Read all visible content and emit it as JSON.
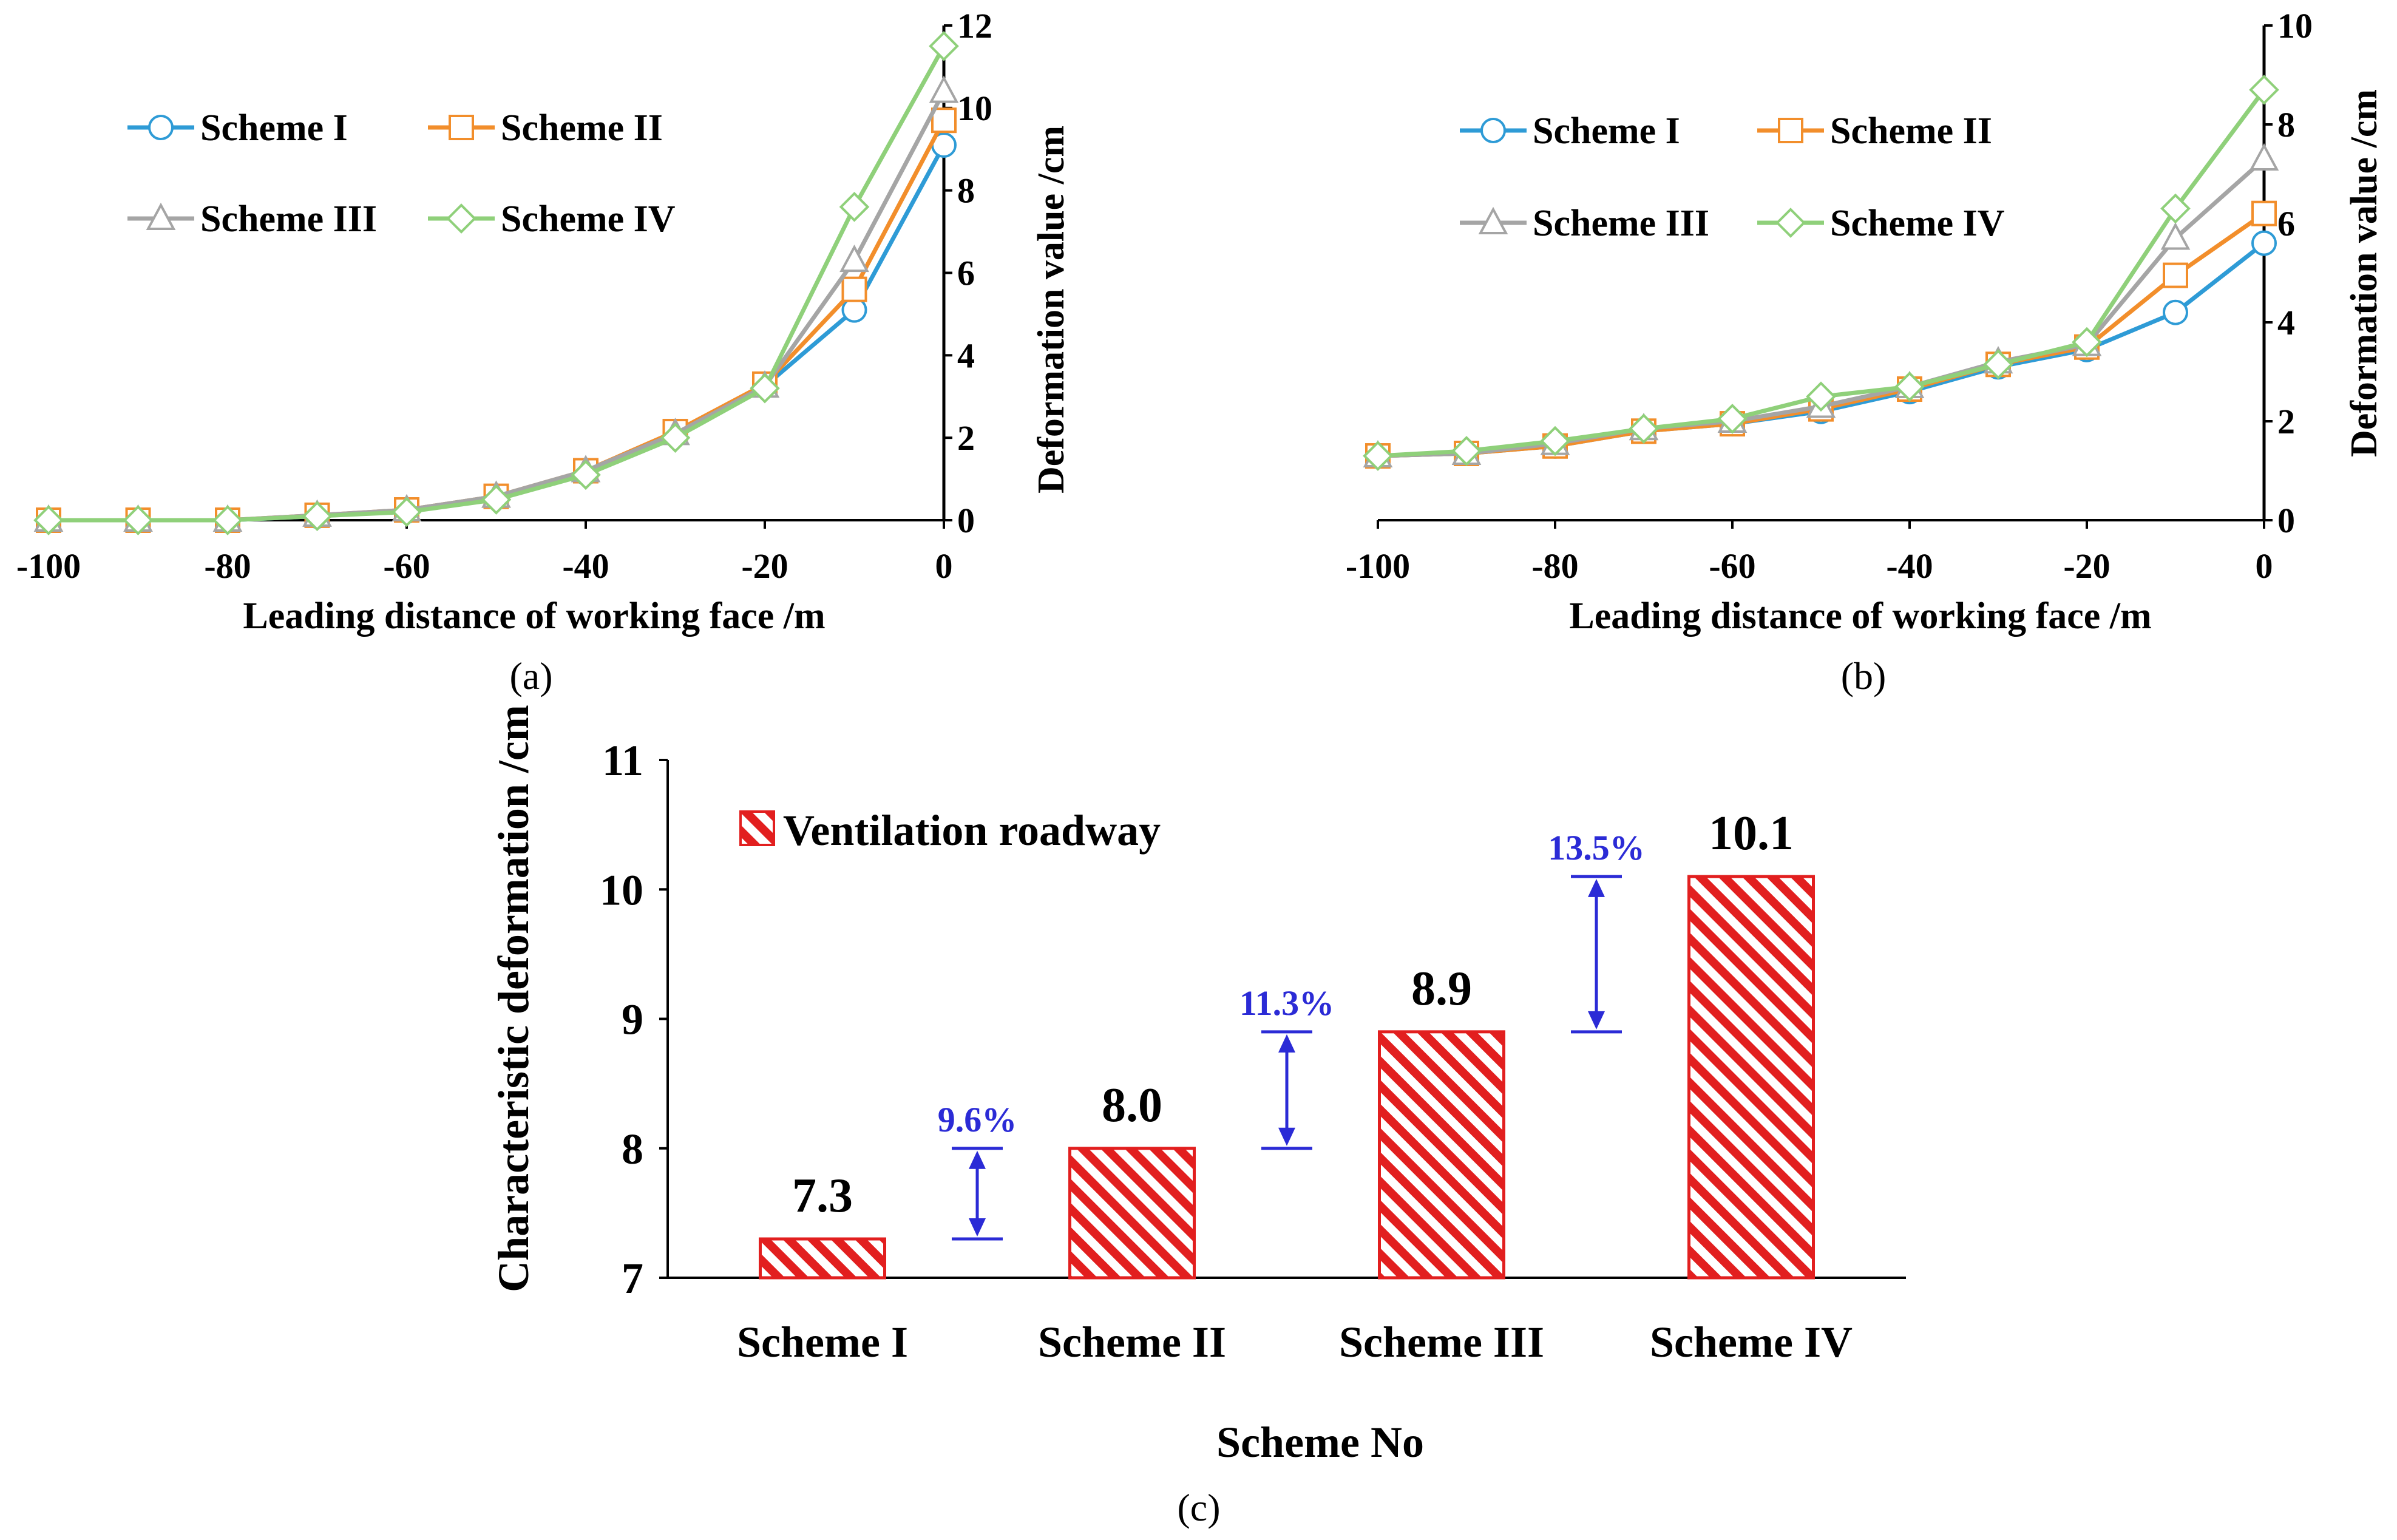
{
  "colors": {
    "scheme1": "#2e9bd6",
    "scheme2": "#f28e2b",
    "scheme3": "#a5a5a5",
    "scheme4": "#8fd07a",
    "bar": "#e21f1f",
    "arrow": "#2b2bd6"
  },
  "chart_data": [
    {
      "type": "line",
      "panel_label": "(a)",
      "xlabel": "Leading distance of working face /m",
      "ylabel": "Deformation value /cm",
      "xlim": [
        -100,
        0
      ],
      "ylim": [
        0,
        12
      ],
      "x_ticks": [
        "-100",
        "-80",
        "-60",
        "-40",
        "-20",
        "0"
      ],
      "y_ticks": [
        "0",
        "2",
        "4",
        "6",
        "8",
        "10",
        "12"
      ],
      "x": [
        -100,
        -90,
        -80,
        -70,
        -60,
        -50,
        -40,
        -30,
        -20,
        -10,
        0
      ],
      "legend_position": "top-left",
      "series": [
        {
          "name": "Scheme I",
          "marker": "circle",
          "values": [
            0,
            0,
            0,
            0.1,
            0.22,
            0.55,
            1.15,
            2.1,
            3.25,
            5.1,
            9.1
          ]
        },
        {
          "name": "Scheme II",
          "marker": "square",
          "values": [
            0,
            0,
            0,
            0.12,
            0.25,
            0.58,
            1.2,
            2.15,
            3.3,
            5.6,
            9.7
          ]
        },
        {
          "name": "Scheme III",
          "marker": "triangle",
          "values": [
            0,
            0,
            0,
            0.12,
            0.25,
            0.58,
            1.2,
            2.1,
            3.25,
            6.3,
            10.4
          ]
        },
        {
          "name": "Scheme IV",
          "marker": "diamond",
          "values": [
            0,
            0,
            0,
            0.1,
            0.2,
            0.5,
            1.1,
            2.0,
            3.2,
            7.6,
            11.5
          ]
        }
      ]
    },
    {
      "type": "line",
      "panel_label": "(b)",
      "xlabel": "Leading distance of working face /m",
      "ylabel": "Deformation value /cm",
      "xlim": [
        -100,
        0
      ],
      "ylim": [
        0,
        10
      ],
      "x_ticks": [
        "-100",
        "-80",
        "-60",
        "-40",
        "-20",
        "0"
      ],
      "y_ticks": [
        "0",
        "2",
        "4",
        "6",
        "8",
        "10"
      ],
      "x": [
        -100,
        -90,
        -80,
        -70,
        -60,
        -50,
        -40,
        -30,
        -20,
        -10,
        0
      ],
      "legend_position": "top-left",
      "series": [
        {
          "name": "Scheme I",
          "marker": "circle",
          "values": [
            1.3,
            1.35,
            1.5,
            1.8,
            1.95,
            2.2,
            2.6,
            3.1,
            3.45,
            4.2,
            5.6
          ]
        },
        {
          "name": "Scheme II",
          "marker": "square",
          "values": [
            1.3,
            1.35,
            1.5,
            1.8,
            1.95,
            2.25,
            2.65,
            3.15,
            3.5,
            4.95,
            6.2
          ]
        },
        {
          "name": "Scheme III",
          "marker": "triangle",
          "values": [
            1.3,
            1.35,
            1.55,
            1.85,
            2.0,
            2.3,
            2.7,
            3.2,
            3.55,
            5.7,
            7.3
          ]
        },
        {
          "name": "Scheme IV",
          "marker": "diamond",
          "values": [
            1.3,
            1.4,
            1.6,
            1.85,
            2.05,
            2.5,
            2.7,
            3.15,
            3.6,
            6.3,
            8.7
          ]
        }
      ]
    },
    {
      "type": "bar",
      "panel_label": "(c)",
      "xlabel": "Scheme No",
      "ylabel": "Characteristic deformation /cm",
      "ylim": [
        7,
        11
      ],
      "y_ticks": [
        "7",
        "8",
        "9",
        "10",
        "11"
      ],
      "legend": "Ventilation roadway",
      "legend_position": "top-left",
      "categories": [
        "Scheme I",
        "Scheme II",
        "Scheme III",
        "Scheme IV"
      ],
      "values": [
        7.3,
        8.0,
        8.9,
        10.1
      ],
      "value_labels": [
        "7.3",
        "8.0",
        "8.9",
        "10.1"
      ],
      "increases": [
        {
          "label": "9.6%",
          "from": 7.3,
          "to": 8.0
        },
        {
          "label": "11.3%",
          "from": 8.0,
          "to": 8.9
        },
        {
          "label": "13.5%",
          "from": 8.9,
          "to": 10.1
        }
      ]
    }
  ]
}
